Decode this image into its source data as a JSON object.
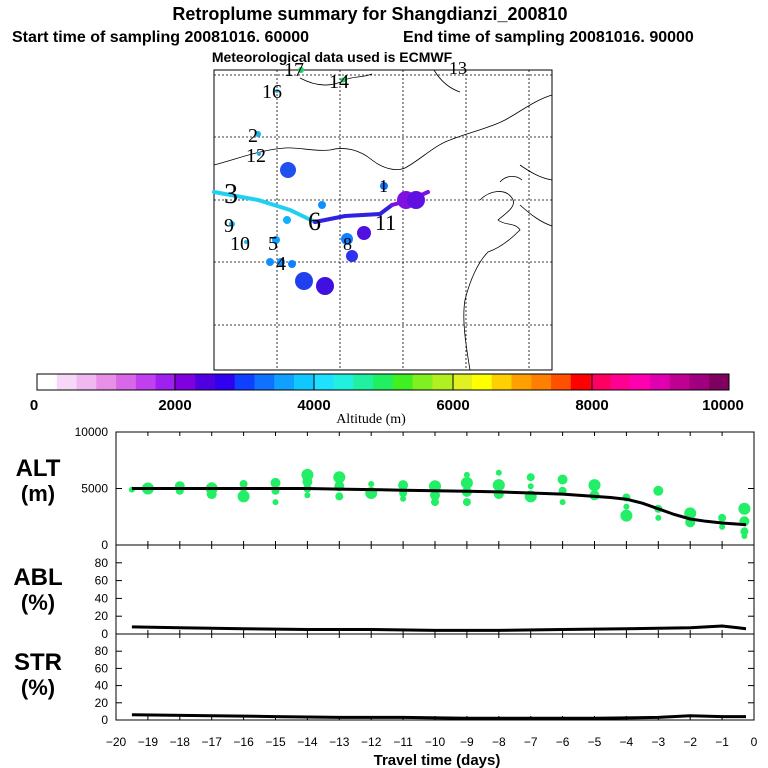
{
  "header": {
    "title": "Retroplume summary for Shangdianzi_200810",
    "start_label": "Start time of sampling 20081016. 60000",
    "end_label": "End time of sampling 20081016. 90000",
    "met_label": "Meteorological data used is ECMWF"
  },
  "colorbar": {
    "tick_labels": [
      "0",
      "2000",
      "4000",
      "6000",
      "8000",
      "10000"
    ],
    "label": "Altitude (m)",
    "colors": [
      "#ffffff",
      "#f7d7f7",
      "#f0b8f0",
      "#e890e8",
      "#d868e8",
      "#c040f0",
      "#a020f0",
      "#8000e0",
      "#5000e0",
      "#3000f0",
      "#1040ff",
      "#1070ff",
      "#10a0ff",
      "#10c8ff",
      "#20e0ff",
      "#20f0e0",
      "#20f0a0",
      "#20f060",
      "#40f020",
      "#80f020",
      "#b0f020",
      "#e0f020",
      "#ffff00",
      "#ffd000",
      "#ffa000",
      "#ff8000",
      "#ff5000",
      "#ff0000",
      "#ff0060",
      "#ff0090",
      "#ff00b0",
      "#e000b0",
      "#c00090",
      "#a00080",
      "#800060"
    ]
  },
  "map": {
    "cluster_labels": [
      "17",
      "14",
      "13",
      "16",
      "2",
      "12",
      "3",
      "9",
      "10",
      "5",
      "4",
      "1",
      "11",
      "6",
      "8"
    ]
  },
  "chart_data": [
    {
      "type": "scatter",
      "panel": "ALT",
      "ylabel": "ALT (m)",
      "ylim": [
        0,
        10000
      ],
      "ytick_labels": [
        "0",
        "5000",
        "10000"
      ],
      "xlim": [
        -20,
        0
      ],
      "median_line": {
        "x": [
          -19.5,
          -19,
          -18,
          -17,
          -16,
          -15,
          -14,
          -13,
          -12,
          -11,
          -10,
          -9,
          -8,
          -7,
          -6,
          -5,
          -4.5,
          -4,
          -3.5,
          -3,
          -2.5,
          -2,
          -1.5,
          -1,
          -0.5,
          -0.25
        ],
        "y": [
          5000,
          5000,
          5000,
          5000,
          5000,
          5000,
          5000,
          4950,
          4900,
          4850,
          4800,
          4750,
          4700,
          4600,
          4500,
          4300,
          4200,
          4050,
          3700,
          3200,
          2700,
          2300,
          2100,
          1950,
          1850,
          1800
        ]
      },
      "points": {
        "x": [
          -19.5,
          -19,
          -18,
          -18,
          -17,
          -17,
          -17,
          -16,
          -16,
          -16,
          -15,
          -15,
          -15,
          -14,
          -14,
          -14,
          -14,
          -13,
          -13,
          -13,
          -12,
          -12,
          -11,
          -11,
          -11,
          -10,
          -10,
          -10,
          -9,
          -9,
          -9,
          -9,
          -8,
          -8,
          -8,
          -7,
          -7,
          -7,
          -6,
          -6,
          -6,
          -5,
          -5,
          -4,
          -4,
          -4,
          -3,
          -3,
          -3,
          -2,
          -2,
          -1,
          -1,
          -0.3,
          -0.3,
          -0.3,
          -0.3
        ],
        "y": [
          4900,
          5000,
          5200,
          4800,
          5300,
          5000,
          4500,
          5400,
          4900,
          4300,
          5500,
          4800,
          3800,
          6200,
          5600,
          5000,
          4400,
          6000,
          5200,
          4300,
          5400,
          4600,
          5300,
          4600,
          4100,
          5200,
          4400,
          3800,
          6200,
          5500,
          4700,
          3800,
          6400,
          5300,
          4500,
          6000,
          5200,
          4300,
          5800,
          4800,
          3800,
          5300,
          4400,
          4200,
          3400,
          2600,
          4800,
          3200,
          2400,
          2800,
          2000,
          2400,
          1600,
          3200,
          2100,
          1200,
          800
        ],
        "color": "#22ee66"
      }
    },
    {
      "type": "line",
      "panel": "ABL",
      "ylabel": "ABL (%)",
      "ylim": [
        0,
        100
      ],
      "ytick_labels": [
        "0",
        "20",
        "40",
        "60",
        "80"
      ],
      "x": [
        -19.5,
        -18,
        -16,
        -14,
        -12,
        -10,
        -8,
        -6,
        -4,
        -2,
        -1.5,
        -1,
        -0.5,
        -0.25
      ],
      "y": [
        8,
        7,
        6,
        5,
        5,
        4,
        4,
        5,
        6,
        7,
        8,
        9,
        7,
        6
      ]
    },
    {
      "type": "line",
      "panel": "STR",
      "ylabel": "STR (%)",
      "ylim": [
        0,
        100
      ],
      "ytick_labels": [
        "0",
        "20",
        "40",
        "60",
        "80"
      ],
      "xlabel": "Travel time (days)",
      "xtick_labels": [
        "−20",
        "−19",
        "−18",
        "−17",
        "−16",
        "−15",
        "−14",
        "−13",
        "−12",
        "−11",
        "−10",
        "−9",
        "−8",
        "−7",
        "−6",
        "−5",
        "−4",
        "−3",
        "−2",
        "−1",
        "0"
      ],
      "x": [
        -19.5,
        -17,
        -15,
        -13,
        -11,
        -9,
        -7,
        -5,
        -3,
        -2,
        -1,
        -0.25
      ],
      "y": [
        6,
        5,
        4,
        3,
        3,
        2,
        2,
        2,
        3,
        5,
        4,
        4
      ]
    }
  ]
}
